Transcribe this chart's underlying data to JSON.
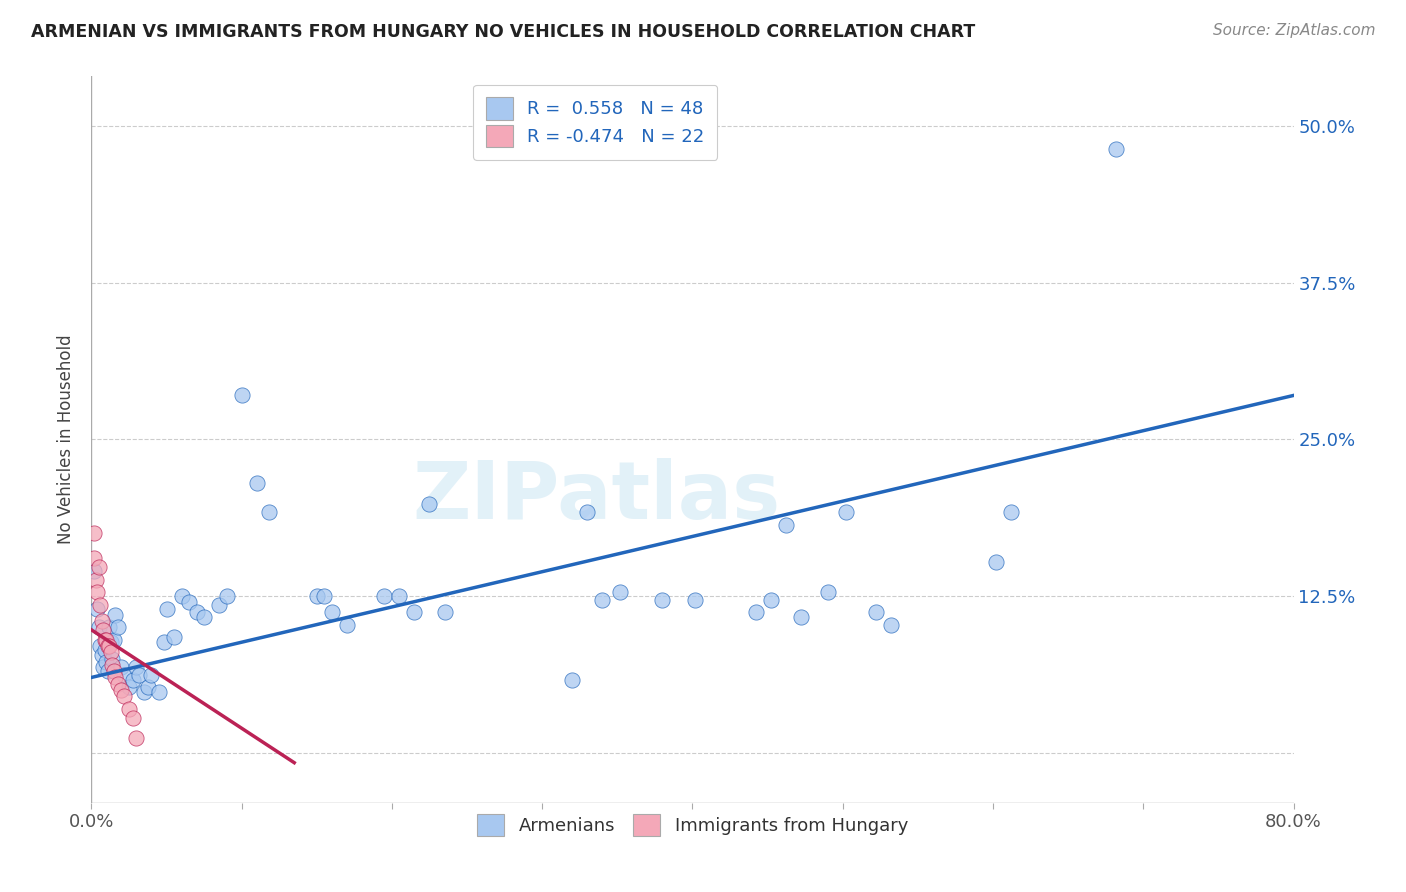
{
  "title": "ARMENIAN VS IMMIGRANTS FROM HUNGARY NO VEHICLES IN HOUSEHOLD CORRELATION CHART",
  "source": "Source: ZipAtlas.com",
  "ylabel": "No Vehicles in Household",
  "armenian_color": "#a8c8f0",
  "hungary_color": "#f4a8b8",
  "trendline_armenian_color": "#2266bb",
  "trendline_hungary_color": "#bb2255",
  "background_color": "#ffffff",
  "armenian_points": [
    [
      0.002,
      0.145
    ],
    [
      0.004,
      0.115
    ],
    [
      0.005,
      0.1
    ],
    [
      0.006,
      0.085
    ],
    [
      0.007,
      0.078
    ],
    [
      0.008,
      0.068
    ],
    [
      0.009,
      0.082
    ],
    [
      0.01,
      0.072
    ],
    [
      0.011,
      0.065
    ],
    [
      0.012,
      0.1
    ],
    [
      0.013,
      0.088
    ],
    [
      0.014,
      0.075
    ],
    [
      0.015,
      0.09
    ],
    [
      0.016,
      0.11
    ],
    [
      0.018,
      0.1
    ],
    [
      0.02,
      0.068
    ],
    [
      0.022,
      0.062
    ],
    [
      0.025,
      0.052
    ],
    [
      0.028,
      0.058
    ],
    [
      0.03,
      0.068
    ],
    [
      0.032,
      0.062
    ],
    [
      0.035,
      0.048
    ],
    [
      0.038,
      0.052
    ],
    [
      0.04,
      0.062
    ],
    [
      0.045,
      0.048
    ],
    [
      0.048,
      0.088
    ],
    [
      0.05,
      0.115
    ],
    [
      0.055,
      0.092
    ],
    [
      0.06,
      0.125
    ],
    [
      0.065,
      0.12
    ],
    [
      0.07,
      0.112
    ],
    [
      0.075,
      0.108
    ],
    [
      0.085,
      0.118
    ],
    [
      0.09,
      0.125
    ],
    [
      0.1,
      0.285
    ],
    [
      0.11,
      0.215
    ],
    [
      0.118,
      0.192
    ],
    [
      0.15,
      0.125
    ],
    [
      0.155,
      0.125
    ],
    [
      0.16,
      0.112
    ],
    [
      0.17,
      0.102
    ],
    [
      0.195,
      0.125
    ],
    [
      0.205,
      0.125
    ],
    [
      0.215,
      0.112
    ],
    [
      0.225,
      0.198
    ],
    [
      0.235,
      0.112
    ],
    [
      0.32,
      0.058
    ],
    [
      0.33,
      0.192
    ],
    [
      0.34,
      0.122
    ],
    [
      0.352,
      0.128
    ],
    [
      0.38,
      0.122
    ],
    [
      0.402,
      0.122
    ],
    [
      0.442,
      0.112
    ],
    [
      0.452,
      0.122
    ],
    [
      0.462,
      0.182
    ],
    [
      0.472,
      0.108
    ],
    [
      0.49,
      0.128
    ],
    [
      0.502,
      0.192
    ],
    [
      0.522,
      0.112
    ],
    [
      0.532,
      0.102
    ],
    [
      0.602,
      0.152
    ],
    [
      0.612,
      0.192
    ],
    [
      0.682,
      0.482
    ]
  ],
  "hungary_points": [
    [
      0.0015,
      0.175
    ],
    [
      0.002,
      0.155
    ],
    [
      0.003,
      0.138
    ],
    [
      0.004,
      0.128
    ],
    [
      0.005,
      0.148
    ],
    [
      0.006,
      0.118
    ],
    [
      0.007,
      0.105
    ],
    [
      0.008,
      0.098
    ],
    [
      0.009,
      0.09
    ],
    [
      0.01,
      0.09
    ],
    [
      0.011,
      0.085
    ],
    [
      0.012,
      0.085
    ],
    [
      0.013,
      0.08
    ],
    [
      0.014,
      0.07
    ],
    [
      0.015,
      0.065
    ],
    [
      0.016,
      0.06
    ],
    [
      0.018,
      0.055
    ],
    [
      0.02,
      0.05
    ],
    [
      0.022,
      0.045
    ],
    [
      0.025,
      0.035
    ],
    [
      0.028,
      0.028
    ],
    [
      0.03,
      0.012
    ]
  ],
  "armenian_trend_x": [
    0.0,
    0.8
  ],
  "armenian_trend_y": [
    0.06,
    0.285
  ],
  "hungary_trend_x": [
    0.0,
    0.135
  ],
  "hungary_trend_y": [
    0.098,
    -0.008
  ],
  "xlim": [
    0.0,
    0.8
  ],
  "ylim": [
    -0.04,
    0.54
  ],
  "ytick_positions": [
    0.0,
    0.125,
    0.25,
    0.375,
    0.5
  ],
  "ytick_labels": [
    "",
    "12.5%",
    "25.0%",
    "37.5%",
    "50.0%"
  ],
  "xtick_labels": [
    "0.0%",
    "",
    "",
    "",
    "",
    "",
    "",
    "",
    "80.0%"
  ]
}
